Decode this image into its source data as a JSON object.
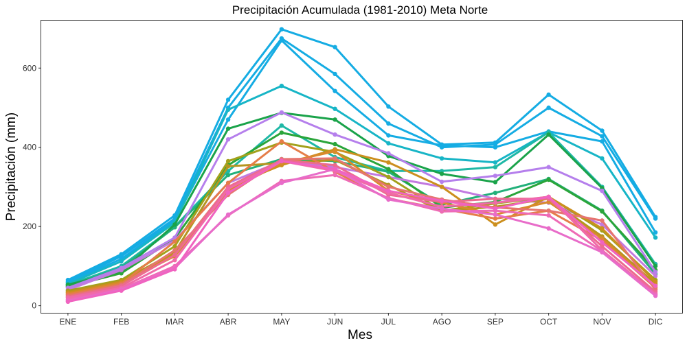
{
  "chart_data": {
    "type": "line",
    "title": "Precipitación Acumulada (1981-2010)  Meta Norte",
    "xlabel": "Mes",
    "ylabel": "Precipitación  (mm)",
    "categories": [
      "ENE",
      "FEB",
      "MAR",
      "ABR",
      "MAY",
      "JUN",
      "JUL",
      "AGO",
      "SEP",
      "OCT",
      "NOV",
      "DIC"
    ],
    "ylim": [
      -18,
      720
    ],
    "yticks": [
      0,
      200,
      400,
      600
    ],
    "grid": false,
    "legend": "none",
    "series": [
      {
        "color": "#15ace3",
        "values": [
          65,
          130,
          228,
          520,
          698,
          653,
          503,
          407,
          412,
          533,
          442,
          224
        ]
      },
      {
        "color": "#15ace3",
        "values": [
          60,
          125,
          220,
          500,
          675,
          585,
          460,
          400,
          407,
          500,
          428,
          220
        ]
      },
      {
        "color": "#15ace3",
        "values": [
          58,
          118,
          215,
          470,
          670,
          542,
          430,
          405,
          400,
          440,
          415,
          185
        ]
      },
      {
        "color": "#17b5c6",
        "values": [
          55,
          112,
          210,
          495,
          555,
          497,
          410,
          372,
          362,
          438,
          372,
          172
        ]
      },
      {
        "color": "#1fb8a6",
        "values": [
          52,
          100,
          200,
          340,
          455,
          375,
          340,
          340,
          350,
          438,
          300,
          105
        ]
      },
      {
        "color": "#22b07a",
        "values": [
          50,
          95,
          198,
          330,
          370,
          365,
          338,
          255,
          285,
          320,
          240,
          80
        ]
      },
      {
        "color": "#1aa34a",
        "values": [
          53,
          85,
          205,
          447,
          487,
          470,
          378,
          333,
          312,
          432,
          297,
          100
        ]
      },
      {
        "color": "#2aa53a",
        "values": [
          48,
          82,
          170,
          355,
          437,
          408,
          345,
          248,
          262,
          318,
          238,
          90
        ]
      },
      {
        "color": "#b57fec",
        "values": [
          45,
          95,
          172,
          420,
          488,
          432,
          385,
          313,
          328,
          350,
          290,
          85
        ]
      },
      {
        "color": "#c27ae0",
        "values": [
          40,
          90,
          165,
          310,
          365,
          350,
          325,
          300,
          270,
          260,
          205,
          75
        ]
      },
      {
        "color": "#a3a11b",
        "values": [
          38,
          65,
          150,
          365,
          412,
          388,
          325,
          240,
          258,
          275,
          190,
          65
        ]
      },
      {
        "color": "#b59520",
        "values": [
          35,
          62,
          135,
          352,
          360,
          368,
          305,
          238,
          250,
          270,
          175,
          55
        ]
      },
      {
        "color": "#cc8f1e",
        "values": [
          33,
          60,
          130,
          300,
          355,
          395,
          362,
          300,
          205,
          275,
          195,
          60
        ]
      },
      {
        "color": "#d98a2c",
        "values": [
          30,
          58,
          125,
          290,
          360,
          390,
          290,
          260,
          230,
          262,
          170,
          50
        ]
      },
      {
        "color": "#e57d48",
        "values": [
          28,
          55,
          162,
          310,
          415,
          338,
          270,
          245,
          220,
          240,
          165,
          45
        ]
      },
      {
        "color": "#e6756f",
        "values": [
          25,
          52,
          140,
          280,
          370,
          372,
          300,
          268,
          248,
          240,
          215,
          40
        ]
      },
      {
        "color": "#ec6b8f",
        "values": [
          22,
          50,
          128,
          300,
          368,
          355,
          280,
          262,
          270,
          270,
          150,
          35
        ]
      },
      {
        "color": "#f06aa8",
        "values": [
          20,
          45,
          115,
          295,
          365,
          340,
          285,
          250,
          260,
          275,
          140,
          30
        ]
      },
      {
        "color": "#ee6bb5",
        "values": [
          15,
          42,
          100,
          228,
          315,
          330,
          272,
          238,
          240,
          228,
          138,
          28
        ]
      },
      {
        "color": "#e86cc9",
        "values": [
          12,
          40,
          95,
          230,
          310,
          345,
          268,
          245,
          230,
          195,
          135,
          25
        ]
      },
      {
        "color": "#f063c0",
        "values": [
          10,
          38,
          92,
          285,
          365,
          345,
          290,
          265,
          245,
          275,
          160,
          50
        ]
      }
    ]
  }
}
